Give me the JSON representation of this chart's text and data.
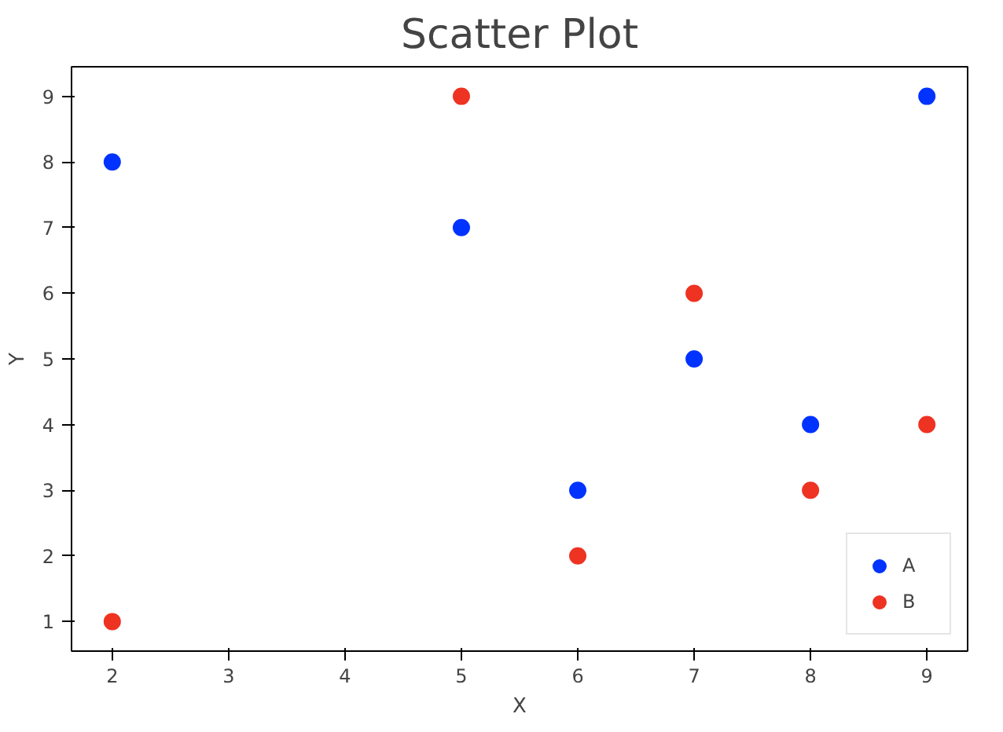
{
  "chart_data": {
    "type": "scatter",
    "title": "Scatter Plot",
    "xlabel": "X",
    "ylabel": "Y",
    "xlim": [
      1.65,
      9.35
    ],
    "ylim": [
      0.55,
      9.45
    ],
    "xticks": [
      2,
      3,
      4,
      5,
      6,
      7,
      8,
      9
    ],
    "yticks": [
      1,
      2,
      3,
      4,
      5,
      6,
      7,
      8,
      9
    ],
    "grid": false,
    "legend": "bottom right",
    "marker": "circle",
    "series": [
      {
        "name": "A",
        "color": "#0033ff",
        "x": [
          2,
          5,
          6,
          7,
          8,
          9
        ],
        "values": [
          8,
          7,
          3,
          5,
          4,
          9
        ]
      },
      {
        "name": "B",
        "color": "#ee3322",
        "x": [
          2,
          5,
          6,
          7,
          8,
          9
        ],
        "values": [
          1,
          9,
          2,
          6,
          3,
          4
        ]
      }
    ]
  }
}
